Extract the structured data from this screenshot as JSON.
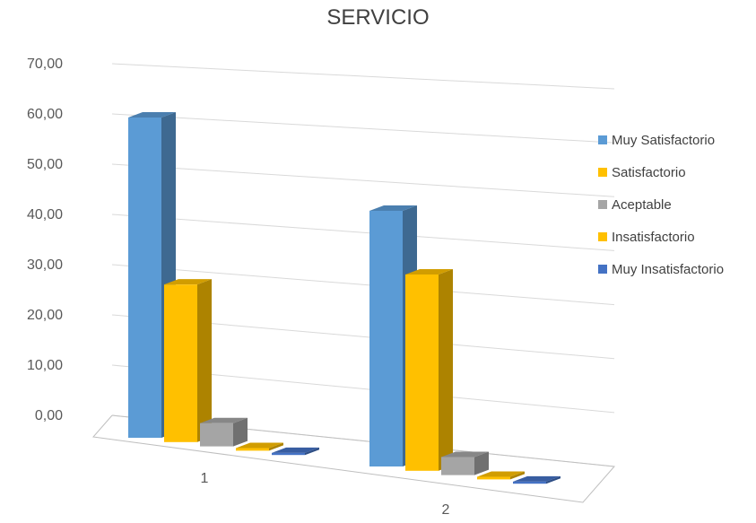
{
  "chart_data": {
    "type": "bar",
    "title": "SERVICIO",
    "categories": [
      "1",
      "2"
    ],
    "ylim": [
      0,
      70
    ],
    "y_ticks": [
      "0,00",
      "10,00",
      "20,00",
      "30,00",
      "40,00",
      "50,00",
      "60,00",
      "70,00"
    ],
    "grid": true,
    "legend_position": "right",
    "series": [
      {
        "name": "Muy Satisfactorio",
        "values": [
          62.0,
          49.5
        ]
      },
      {
        "name": "Satisfactorio",
        "values": [
          30.5,
          38.0
        ]
      },
      {
        "name": "Aceptable",
        "values": [
          4.5,
          3.5
        ]
      },
      {
        "name": "Insatisfactorio",
        "values": [
          0.5,
          0.5
        ]
      },
      {
        "name": "Muy Insatisfactorio",
        "values": [
          0.4,
          0.4
        ]
      }
    ]
  },
  "colors": {
    "Muy Satisfactorio": "#5B9BD5",
    "Satisfactorio": "#FFC000",
    "Aceptable": "#A5A5A5",
    "Insatisfactorio": "#FFC000",
    "Muy Insatisfactorio": "#4472C4"
  }
}
